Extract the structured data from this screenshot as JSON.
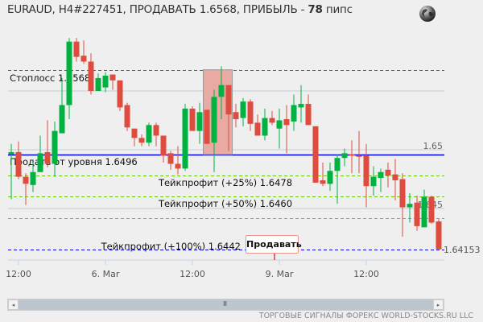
{
  "header": {
    "title_prefix": "EURAUD, H4#227451, ПРОДАВАТЬ 1.6568, ПРИБЫЛЬ - ",
    "profit_value": "78",
    "profit_unit": " пипс",
    "globe_icon": "globe-icon"
  },
  "sell_tag": "Продавать",
  "footer": "ТОРГОВЫЕ СИГНАЛЫ ФОРЕКС WORLD-STOCKS.RU LLC",
  "scrollbar": {
    "left_icon": "◂",
    "right_icon": "▸",
    "grip": "III"
  },
  "chart_data": {
    "type": "candlestick",
    "symbol": "EURAUD",
    "timeframe": "H4",
    "colors": {
      "up": "#00b341",
      "down": "#dd4c3e",
      "stop": "#dd2222",
      "entry": "#0000ee",
      "takeprofit": "#66cc00",
      "zone": "#e8aaa3"
    },
    "ylim": [
      1.6408,
      1.6625
    ],
    "y_ticks": [
      "1.65",
      "1.645"
    ],
    "y_tick_values": [
      1.65,
      1.645
    ],
    "x_ticks": [
      {
        "index": 1,
        "label": "12:00"
      },
      {
        "index": 13,
        "label": "6. Mar"
      },
      {
        "index": 25,
        "label": "12:00"
      },
      {
        "index": 37,
        "label": "9. Mar"
      },
      {
        "index": 49,
        "label": "12:00"
      }
    ],
    "levels": [
      {
        "label": "Стоплосс 1.6568",
        "price": 1.6568,
        "kind": "stop"
      },
      {
        "label": "Продать от уровня 1.6496",
        "price": 1.6496,
        "kind": "entry"
      },
      {
        "label": "Тейкпрофит (+25%) 1.6478",
        "price": 1.6478,
        "kind": "takeprofit"
      },
      {
        "label": "Тейкпрофит (+50%) 1.6460",
        "price": 1.646,
        "kind": "takeprofit"
      },
      {
        "label": "Тейкпрофит (+100%) 1.6442",
        "price": 1.6442,
        "kind": "takeprofit"
      }
    ],
    "current_price": "1.64153",
    "signal_zone": {
      "from_index": 27,
      "to_index": 30,
      "price_high": 1.6568,
      "price_low": 1.6496
    },
    "ohlc": [
      [
        1.6496,
        1.6505,
        1.6458,
        1.6498
      ],
      [
        1.6498,
        1.6507,
        1.6475,
        1.6477
      ],
      [
        1.6477,
        1.648,
        1.6453,
        1.6471
      ],
      [
        1.647,
        1.6489,
        1.6464,
        1.6481
      ],
      [
        1.6481,
        1.6512,
        1.6481,
        1.6497
      ],
      [
        1.6498,
        1.6525,
        1.6485,
        1.6488
      ],
      [
        1.6488,
        1.6524,
        1.6477,
        1.6516
      ],
      [
        1.6514,
        1.6561,
        1.6514,
        1.6538
      ],
      [
        1.6538,
        1.6595,
        1.6526,
        1.6592
      ],
      [
        1.6592,
        1.6595,
        1.6575,
        1.6579
      ],
      [
        1.658,
        1.6593,
        1.6573,
        1.6575
      ],
      [
        1.6575,
        1.6582,
        1.6547,
        1.655
      ],
      [
        1.655,
        1.6565,
        1.655,
        1.6561
      ],
      [
        1.6553,
        1.6566,
        1.6549,
        1.6563
      ],
      [
        1.6564,
        1.6564,
        1.6551,
        1.6559
      ],
      [
        1.6559,
        1.6559,
        1.6533,
        1.6536
      ],
      [
        1.6538,
        1.654,
        1.6516,
        1.6519
      ],
      [
        1.6518,
        1.6518,
        1.6503,
        1.651
      ],
      [
        1.651,
        1.6513,
        1.6503,
        1.6506
      ],
      [
        1.6506,
        1.6523,
        1.6503,
        1.6521
      ],
      [
        1.6521,
        1.6523,
        1.6503,
        1.6512
      ],
      [
        1.6512,
        1.6512,
        1.6489,
        1.6495
      ],
      [
        1.6497,
        1.6499,
        1.6483,
        1.6488
      ],
      [
        1.6488,
        1.6503,
        1.6479,
        1.6484
      ],
      [
        1.6484,
        1.6539,
        1.6482,
        1.6535
      ],
      [
        1.6535,
        1.6537,
        1.6516,
        1.6516
      ],
      [
        1.6516,
        1.654,
        1.6505,
        1.6532
      ],
      [
        1.6534,
        1.6534,
        1.6505,
        1.6505
      ],
      [
        1.6506,
        1.6551,
        1.6481,
        1.6545
      ],
      [
        1.6545,
        1.6571,
        1.6526,
        1.6555
      ],
      [
        1.6555,
        1.6555,
        1.6499,
        1.653
      ],
      [
        1.6532,
        1.6539,
        1.6519,
        1.6526
      ],
      [
        1.6527,
        1.6544,
        1.652,
        1.6541
      ],
      [
        1.6541,
        1.6543,
        1.6516,
        1.6522
      ],
      [
        1.6523,
        1.653,
        1.6512,
        1.6512
      ],
      [
        1.6512,
        1.6535,
        1.6508,
        1.6527
      ],
      [
        1.6527,
        1.6533,
        1.6521,
        1.6523
      ],
      [
        1.6518,
        1.6535,
        1.6501,
        1.6525
      ],
      [
        1.6526,
        1.6538,
        1.6497,
        1.6521
      ],
      [
        1.6524,
        1.6547,
        1.6516,
        1.6538
      ],
      [
        1.6536,
        1.6555,
        1.6523,
        1.6539
      ],
      [
        1.6539,
        1.6547,
        1.6521,
        1.6521
      ],
      [
        1.652,
        1.652,
        1.6472,
        1.6472
      ],
      [
        1.6474,
        1.6489,
        1.6469,
        1.6471
      ],
      [
        1.6471,
        1.6489,
        1.6465,
        1.6482
      ],
      [
        1.6482,
        1.6496,
        1.6454,
        1.6493
      ],
      [
        1.6493,
        1.6501,
        1.6486,
        1.6497
      ],
      [
        1.6496,
        1.6508,
        1.648,
        1.6495
      ],
      [
        1.6495,
        1.6516,
        1.648,
        1.6494
      ],
      [
        1.6495,
        1.6505,
        1.6451,
        1.6469
      ],
      [
        1.6469,
        1.6486,
        1.6461,
        1.6477
      ],
      [
        1.6476,
        1.6484,
        1.6464,
        1.6481
      ],
      [
        1.6483,
        1.6489,
        1.6468,
        1.6478
      ],
      [
        1.6479,
        1.6492,
        1.6457,
        1.6474
      ],
      [
        1.6475,
        1.648,
        1.6426,
        1.6451
      ],
      [
        1.6451,
        1.6463,
        1.6438,
        1.6454
      ],
      [
        1.6455,
        1.6461,
        1.6431,
        1.6435
      ],
      [
        1.6434,
        1.6466,
        1.6434,
        1.646
      ],
      [
        1.646,
        1.6461,
        1.6437,
        1.6438
      ],
      [
        1.6439,
        1.6441,
        1.64153,
        1.64153
      ]
    ]
  }
}
